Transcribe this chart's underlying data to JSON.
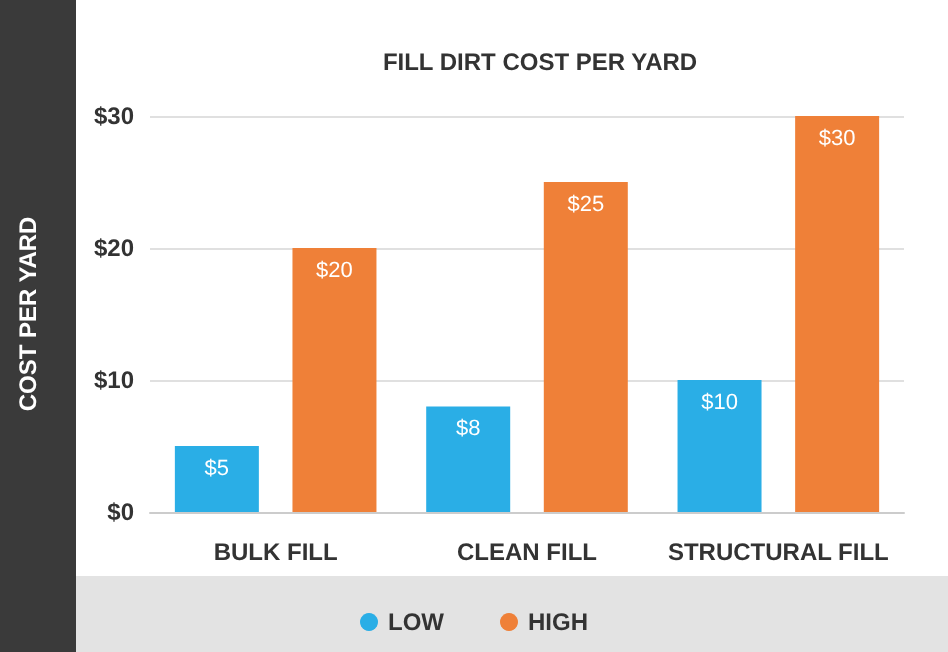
{
  "chart_data": {
    "type": "bar",
    "title": "FILL DIRT COST PER YARD",
    "ylabel": "COST PER YARD",
    "categories": [
      "BULK FILL",
      "CLEAN FILL",
      "STRUCTURAL FILL"
    ],
    "series": [
      {
        "name": "LOW",
        "color": "#2aaee6",
        "values": [
          5,
          8,
          10
        ],
        "value_labels": [
          "$5",
          "$8",
          "$10"
        ]
      },
      {
        "name": "HIGH",
        "color": "#ef8038",
        "values": [
          20,
          25,
          30
        ],
        "value_labels": [
          "$20",
          "$25",
          "$30"
        ]
      }
    ],
    "ylim": [
      0,
      30
    ],
    "yticks": [
      {
        "value": 0,
        "label": "$0"
      },
      {
        "value": 10,
        "label": "$10"
      },
      {
        "value": 20,
        "label": "$20"
      },
      {
        "value": 30,
        "label": "$30"
      }
    ],
    "grid": "y",
    "legend": "bottom"
  }
}
